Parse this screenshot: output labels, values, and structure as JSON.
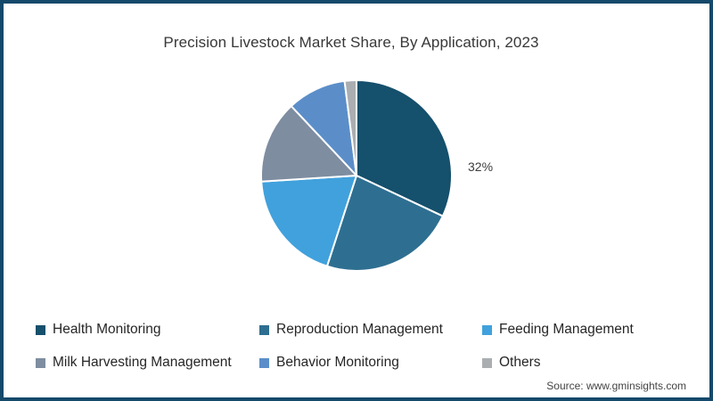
{
  "window": {
    "border_color": "#15496b",
    "background": "#ffffff"
  },
  "chart_data": {
    "type": "pie",
    "title": "Precision Livestock Market Share, By Application, 2023",
    "categories": [
      "Health Monitoring",
      "Reproduction Management",
      "Feeding Management",
      "Milk Harvesting Management",
      "Behavior Monitoring",
      "Others"
    ],
    "values": [
      32,
      23,
      19,
      14,
      10,
      2
    ],
    "unit": "%",
    "colors": [
      "#15506c",
      "#2e6f91",
      "#41a1dc",
      "#7e8da0",
      "#5b8ec9",
      "#aaaeb1"
    ],
    "data_labels": [
      "32%",
      null,
      null,
      null,
      null,
      null
    ],
    "start_angle_deg": 0,
    "direction": "clockwise",
    "legend_position": "bottom",
    "slice_border_color": "#ffffff"
  },
  "footer": {
    "source": "Source: www.gminsights.com"
  }
}
